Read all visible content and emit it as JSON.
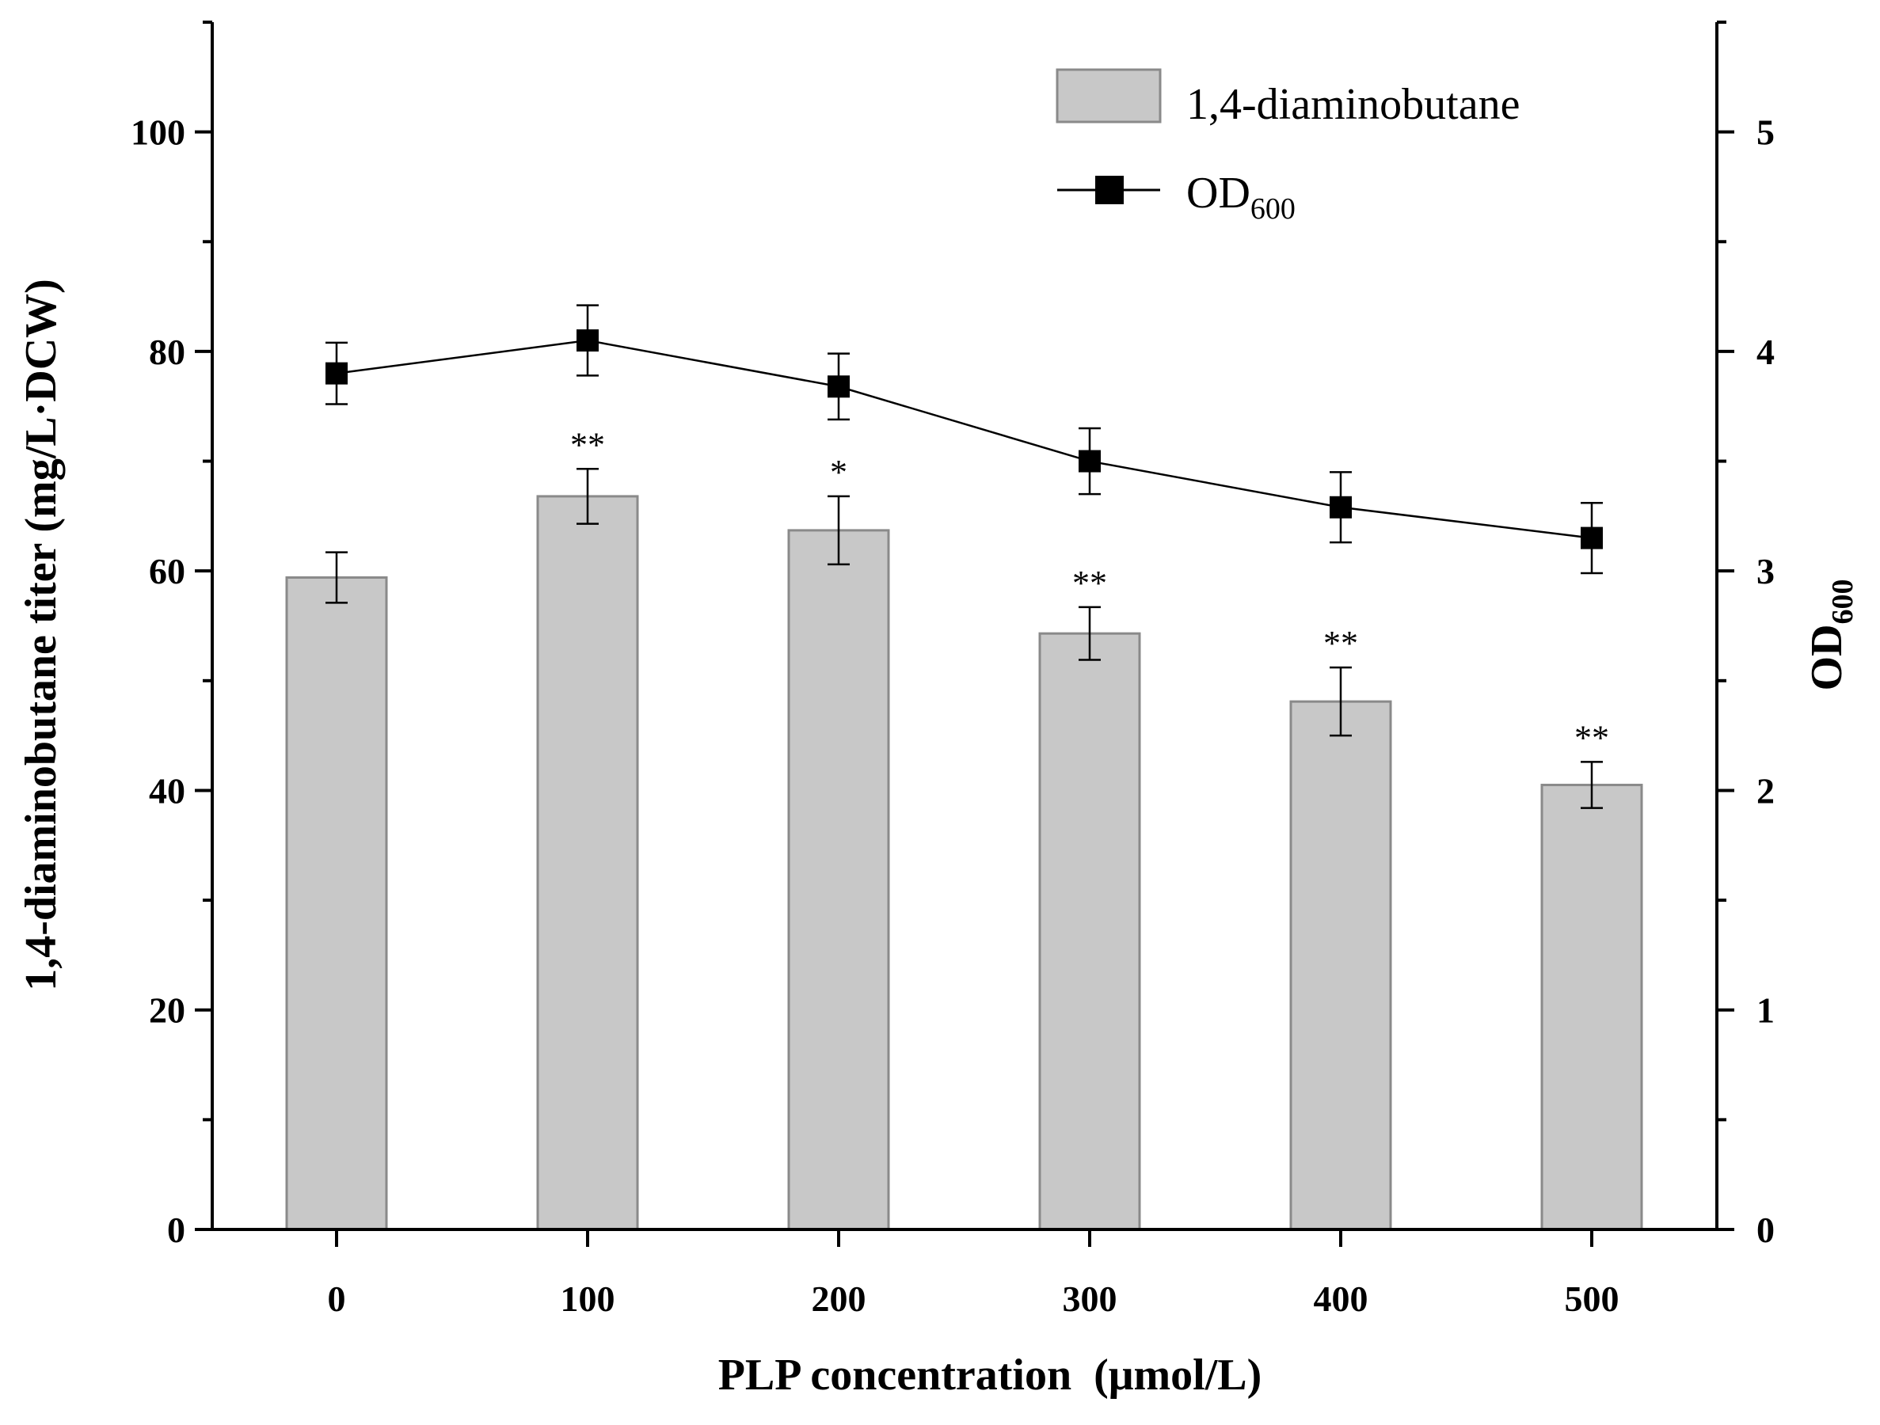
{
  "chart_data": {
    "type": "bar+line",
    "categories": [
      "0",
      "100",
      "200",
      "300",
      "400",
      "500"
    ],
    "xlabel": "PLP concentration  (μmol/L)",
    "ylabel_left": "1,4-diaminobutane titer (mg/L·DCW)",
    "ylabel_right": "OD",
    "ylabel_right_sub": "600",
    "ylim_left": [
      0,
      110
    ],
    "yticks_left": [
      0,
      20,
      40,
      60,
      80,
      100
    ],
    "ylim_right": [
      0,
      5.5
    ],
    "yticks_right": [
      0,
      1,
      2,
      3,
      4,
      5
    ],
    "series": [
      {
        "name": "1,4-diaminobutane",
        "type": "bar",
        "axis": "left",
        "color": "#c8c8c8",
        "values": [
          59.4,
          66.8,
          63.7,
          54.3,
          48.1,
          40.5
        ],
        "errors": [
          2.3,
          2.5,
          3.1,
          2.4,
          3.1,
          2.1
        ],
        "significance": [
          "",
          "**",
          "*",
          "**",
          "**",
          "**"
        ]
      },
      {
        "name": "OD",
        "name_sub": "600",
        "type": "line",
        "axis": "right",
        "color": "#000000",
        "values": [
          3.9,
          4.05,
          3.84,
          3.5,
          3.29,
          3.15
        ],
        "errors": [
          0.14,
          0.16,
          0.15,
          0.15,
          0.16,
          0.16
        ]
      }
    ],
    "legend_position": "top-right"
  }
}
